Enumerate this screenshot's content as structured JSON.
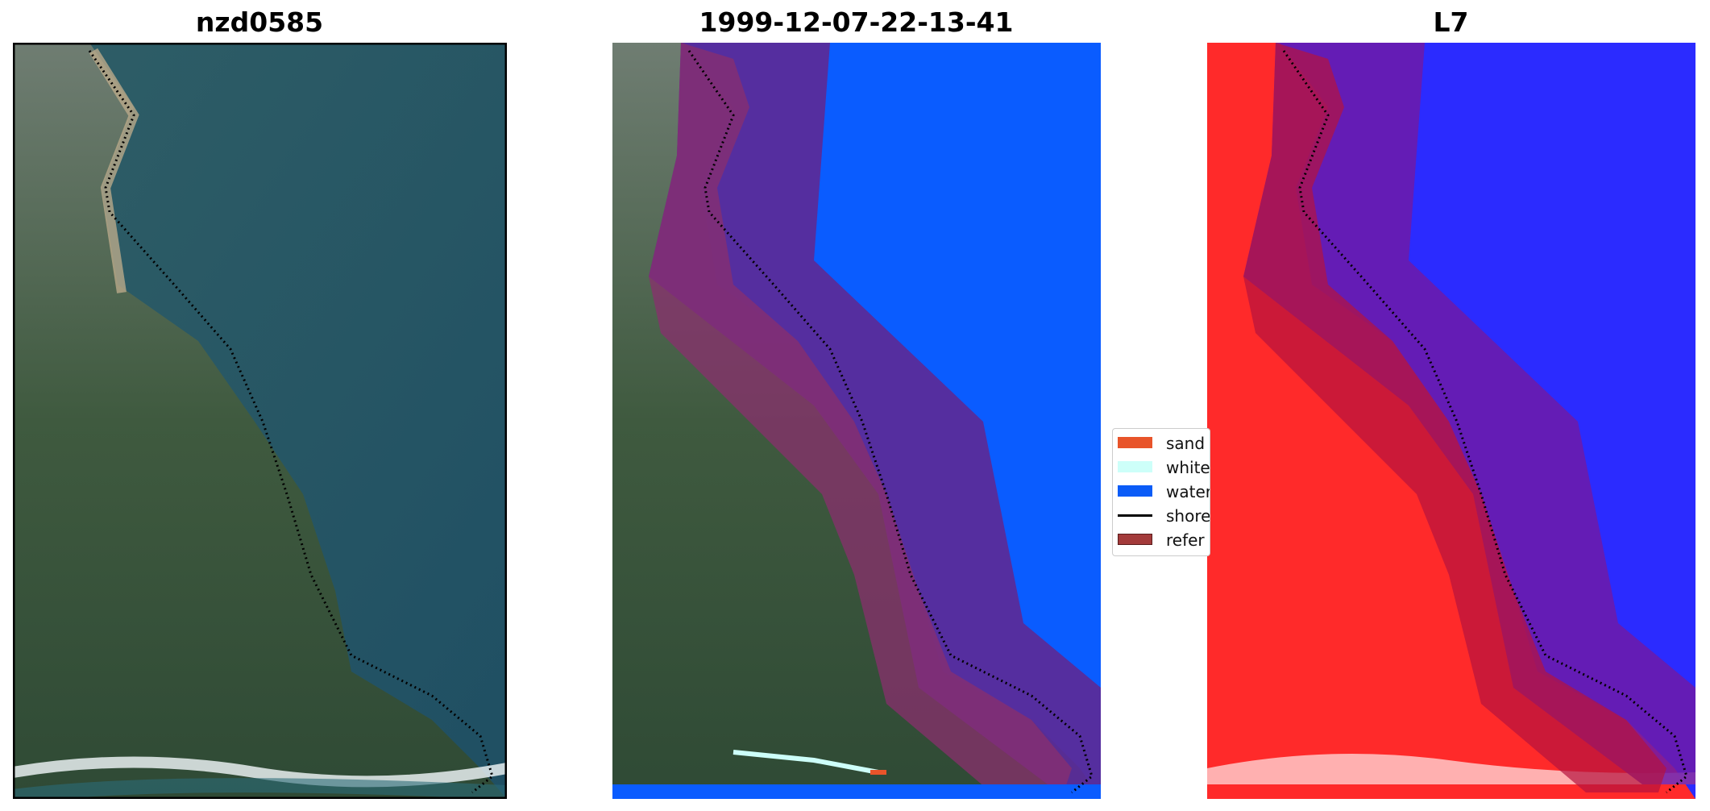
{
  "panels": [
    {
      "title": "nzd0585"
    },
    {
      "title": "1999-12-07-22-13-41"
    },
    {
      "title": "L7"
    }
  ],
  "legend": {
    "items": [
      {
        "label": "sand",
        "color": "#e8542a"
      },
      {
        "label": "white",
        "color": "#cdfff9"
      },
      {
        "label": "water",
        "color": "#0b5cf7"
      },
      {
        "label": "shore",
        "color": "#000000"
      },
      {
        "label": "refer",
        "color": "#a33a3a"
      }
    ]
  },
  "colors": {
    "water_class": "#0a5cff",
    "buffer_purple": "#5a2b9a",
    "buffer_overlay": "#8a2f6e",
    "land_red": "#ff2a2a",
    "water_blue": "#2b2bff"
  }
}
